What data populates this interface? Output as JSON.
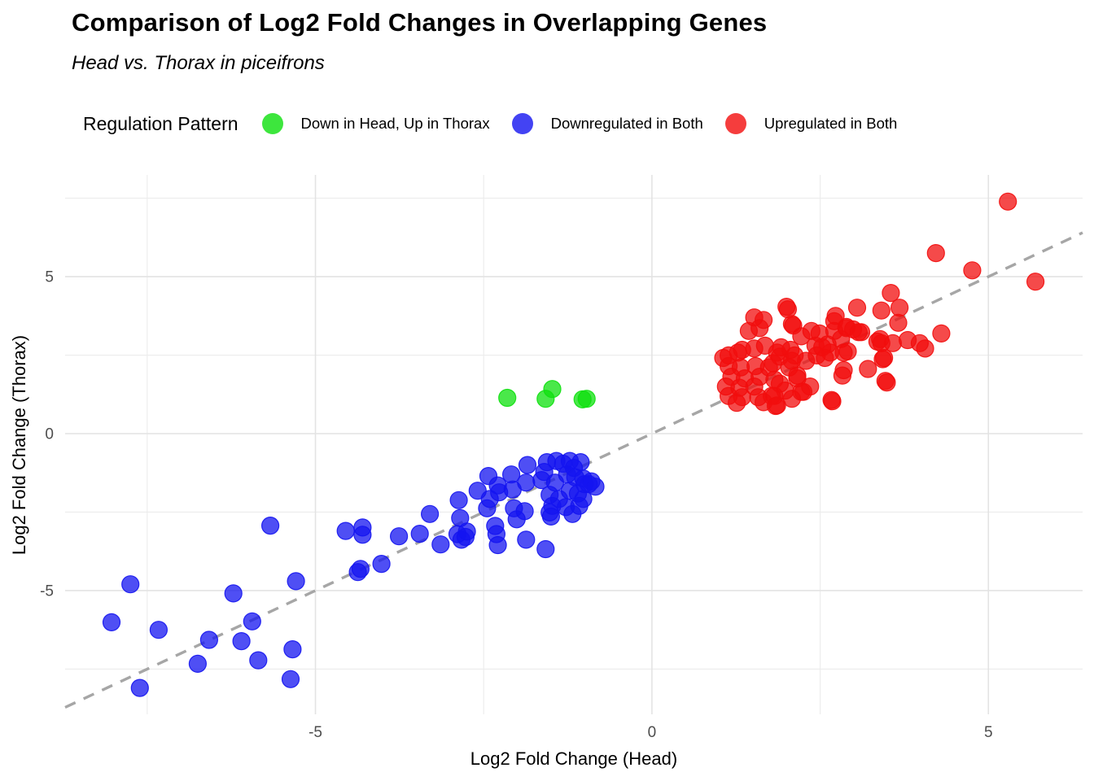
{
  "title": "Comparison of Log2 Fold Changes in Overlapping Genes",
  "subtitle": "Head vs. Thorax in piceifrons",
  "legend": {
    "title": "Regulation Pattern",
    "items": [
      {
        "label": "Down in Head, Up in Thorax",
        "color": "#0DE00D"
      },
      {
        "label": "Downregulated in Both",
        "color": "#1414F0"
      },
      {
        "label": "Upregulated in Both",
        "color": "#F20D0D"
      }
    ]
  },
  "axes": {
    "x": {
      "label": "Log2 Fold Change (Head)",
      "ticks": [
        "-5",
        "0",
        "5"
      ],
      "tick_values": [
        -5,
        0,
        5
      ],
      "minor_tick_values": [
        -7.5,
        -2.5,
        2.5
      ],
      "range": [
        -8.72,
        6.4
      ]
    },
    "y": {
      "label": "Log2 Fold Change (Thorax)",
      "ticks": [
        "-5",
        "0",
        "5"
      ],
      "tick_values": [
        -5,
        0,
        5
      ],
      "minor_tick_values": [
        -7.5,
        -2.5,
        2.5,
        7.5
      ],
      "range": [
        -8.94,
        8.24
      ]
    }
  },
  "chart_data": {
    "type": "scatter",
    "title": "Comparison of Log2 Fold Changes in Overlapping Genes",
    "subtitle": "Head vs. Thorax in piceifrons",
    "xlabel": "Log2 Fold Change (Head)",
    "ylabel": "Log2 Fold Change (Thorax)",
    "xlim": [
      -8.72,
      6.4
    ],
    "ylim": [
      -8.94,
      8.24
    ],
    "grid": true,
    "legend_position": "top",
    "marker_radius": 10.5,
    "marker_alpha": 0.75,
    "identity_line": {
      "equation": "y = x",
      "style": "dashed",
      "color": "#A6A6A6"
    },
    "series": [
      {
        "name": "Down in Head, Up in Thorax",
        "color": "#0DE00D",
        "points": [
          [
            -2.15,
            1.14
          ],
          [
            -1.58,
            1.11
          ],
          [
            -1.48,
            1.42
          ],
          [
            -1.03,
            1.09
          ],
          [
            -0.97,
            1.11
          ]
        ]
      },
      {
        "name": "Downregulated in Both",
        "color": "#1414F0",
        "points": [
          [
            -8.03,
            -6.01
          ],
          [
            -7.75,
            -4.8
          ],
          [
            -7.61,
            -8.1
          ],
          [
            -7.33,
            -6.25
          ],
          [
            -6.75,
            -7.33
          ],
          [
            -6.58,
            -6.57
          ],
          [
            -6.22,
            -5.09
          ],
          [
            -6.1,
            -6.61
          ],
          [
            -5.94,
            -5.98
          ],
          [
            -5.85,
            -7.22
          ],
          [
            -5.67,
            -2.93
          ],
          [
            -5.37,
            -7.82
          ],
          [
            -5.34,
            -6.87
          ],
          [
            -5.29,
            -4.7
          ],
          [
            -4.55,
            -3.1
          ],
          [
            -4.37,
            -4.41
          ],
          [
            -4.33,
            -4.31
          ],
          [
            -4.3,
            -2.99
          ],
          [
            -4.3,
            -3.22
          ],
          [
            -4.02,
            -4.15
          ],
          [
            -3.76,
            -3.27
          ],
          [
            -3.45,
            -3.19
          ],
          [
            -3.3,
            -2.56
          ],
          [
            -3.14,
            -3.53
          ],
          [
            -2.89,
            -3.2
          ],
          [
            -2.87,
            -2.12
          ],
          [
            -2.85,
            -2.69
          ],
          [
            -2.83,
            -3.38
          ],
          [
            -2.77,
            -3.29
          ],
          [
            -2.75,
            -3.12
          ],
          [
            -2.59,
            -1.82
          ],
          [
            -2.45,
            -2.38
          ],
          [
            -2.43,
            -1.35
          ],
          [
            -2.41,
            -2.08
          ],
          [
            -2.33,
            -2.94
          ],
          [
            -2.31,
            -3.2
          ],
          [
            -2.29,
            -1.65
          ],
          [
            -2.29,
            -3.55
          ],
          [
            -2.27,
            -1.87
          ],
          [
            -2.09,
            -1.3
          ],
          [
            -2.07,
            -1.78
          ],
          [
            -2.05,
            -2.38
          ],
          [
            -2.01,
            -2.73
          ],
          [
            -1.89,
            -2.47
          ],
          [
            -1.87,
            -1.56
          ],
          [
            -1.87,
            -3.38
          ],
          [
            -1.85,
            -1.0
          ],
          [
            -1.64,
            -1.48
          ],
          [
            -1.6,
            -1.22
          ],
          [
            -1.58,
            -3.68
          ],
          [
            -1.56,
            -0.91
          ],
          [
            -1.52,
            -1.95
          ],
          [
            -1.52,
            -2.51
          ],
          [
            -1.5,
            -2.64
          ],
          [
            -1.48,
            -2.3
          ],
          [
            -1.44,
            -1.56
          ],
          [
            -1.42,
            -0.87
          ],
          [
            -1.38,
            -2.08
          ],
          [
            -1.32,
            -0.96
          ],
          [
            -1.28,
            -2.34
          ],
          [
            -1.26,
            -1.3
          ],
          [
            -1.22,
            -0.87
          ],
          [
            -1.22,
            -1.82
          ],
          [
            -1.18,
            -2.56
          ],
          [
            -1.16,
            -1.09
          ],
          [
            -1.14,
            -1.39
          ],
          [
            -1.1,
            -1.91
          ],
          [
            -1.08,
            -2.3
          ],
          [
            -1.06,
            -0.91
          ],
          [
            -1.02,
            -1.43
          ],
          [
            -1.02,
            -2.08
          ],
          [
            -1.0,
            -1.61
          ],
          [
            -0.94,
            -1.61
          ],
          [
            -0.9,
            -1.52
          ],
          [
            -0.84,
            -1.69
          ]
        ]
      },
      {
        "name": "Upregulated in Both",
        "color": "#F20D0D",
        "points": [
          [
            1.14,
            2.49
          ],
          [
            1.34,
            2.67
          ],
          [
            1.44,
            3.27
          ],
          [
            1.52,
            3.7
          ],
          [
            1.52,
            2.71
          ],
          [
            1.6,
            3.36
          ],
          [
            1.66,
            3.62
          ],
          [
            1.68,
            2.8
          ],
          [
            1.86,
            2.58
          ],
          [
            2.0,
            4.04
          ],
          [
            2.02,
            3.96
          ],
          [
            2.06,
            2.67
          ],
          [
            2.1,
            3.44
          ],
          [
            1.06,
            2.41
          ],
          [
            1.28,
            2.58
          ],
          [
            1.9,
            2.45
          ],
          [
            2.08,
            2.32
          ],
          [
            1.14,
            2.15
          ],
          [
            1.32,
            2.11
          ],
          [
            1.54,
            2.15
          ],
          [
            1.74,
            2.11
          ],
          [
            1.18,
            1.81
          ],
          [
            1.38,
            1.76
          ],
          [
            1.6,
            1.81
          ],
          [
            1.82,
            1.72
          ],
          [
            1.1,
            1.5
          ],
          [
            1.3,
            1.46
          ],
          [
            1.52,
            1.5
          ],
          [
            1.14,
            1.2
          ],
          [
            1.34,
            1.16
          ],
          [
            1.58,
            1.16
          ],
          [
            1.78,
            1.2
          ],
          [
            1.98,
            1.37
          ],
          [
            2.16,
            1.85
          ],
          [
            2.22,
            1.33
          ],
          [
            2.35,
            1.5
          ],
          [
            1.66,
            1.0
          ],
          [
            1.86,
            0.9
          ],
          [
            1.26,
            0.98
          ],
          [
            2.08,
            3.49
          ],
          [
            2.37,
            3.27
          ],
          [
            2.22,
            3.1
          ],
          [
            2.43,
            2.8
          ],
          [
            2.61,
            2.84
          ],
          [
            2.71,
            3.58
          ],
          [
            2.89,
            3.36
          ],
          [
            3.11,
            3.23
          ],
          [
            3.35,
            2.93
          ],
          [
            3.41,
            2.88
          ],
          [
            1.92,
            2.75
          ],
          [
            2.12,
            2.49
          ],
          [
            2.45,
            2.49
          ],
          [
            2.65,
            2.58
          ],
          [
            2.85,
            2.58
          ],
          [
            1.8,
            2.24
          ],
          [
            2.04,
            2.11
          ],
          [
            2.29,
            2.32
          ],
          [
            2.85,
            2.02
          ],
          [
            2.83,
            1.85
          ],
          [
            3.21,
            2.06
          ],
          [
            3.45,
            2.41
          ],
          [
            3.47,
            1.68
          ],
          [
            1.9,
            1.59
          ],
          [
            2.16,
            1.76
          ],
          [
            2.25,
            1.33
          ],
          [
            1.82,
            1.2
          ],
          [
            2.08,
            1.11
          ],
          [
            2.68,
            1.03
          ],
          [
            1.84,
            0.88
          ],
          [
            2.73,
            3.75
          ],
          [
            3.05,
            4.01
          ],
          [
            3.41,
            3.92
          ],
          [
            3.55,
            4.48
          ],
          [
            3.68,
            4.01
          ],
          [
            3.66,
            3.53
          ],
          [
            2.49,
            3.19
          ],
          [
            2.71,
            3.27
          ],
          [
            2.89,
            3.4
          ],
          [
            2.99,
            3.32
          ],
          [
            3.07,
            3.23
          ],
          [
            2.81,
            3.01
          ],
          [
            2.53,
            2.75
          ],
          [
            2.91,
            2.62
          ],
          [
            2.57,
            2.41
          ],
          [
            3.39,
            3.01
          ],
          [
            3.58,
            2.88
          ],
          [
            3.43,
            2.37
          ],
          [
            3.49,
            1.63
          ],
          [
            4.06,
            2.71
          ],
          [
            4.3,
            3.19
          ],
          [
            2.67,
            1.07
          ],
          [
            3.98,
            2.88
          ],
          [
            3.8,
            2.98
          ],
          [
            4.22,
            5.75
          ],
          [
            4.76,
            5.2
          ],
          [
            5.29,
            7.39
          ],
          [
            5.7,
            4.84
          ]
        ]
      }
    ]
  },
  "style": {
    "grid_major_color": "#E3E3E3",
    "grid_minor_color": "#ECECEC",
    "tick_label_color": "#4D4D4D",
    "background": "#FFFFFF"
  }
}
